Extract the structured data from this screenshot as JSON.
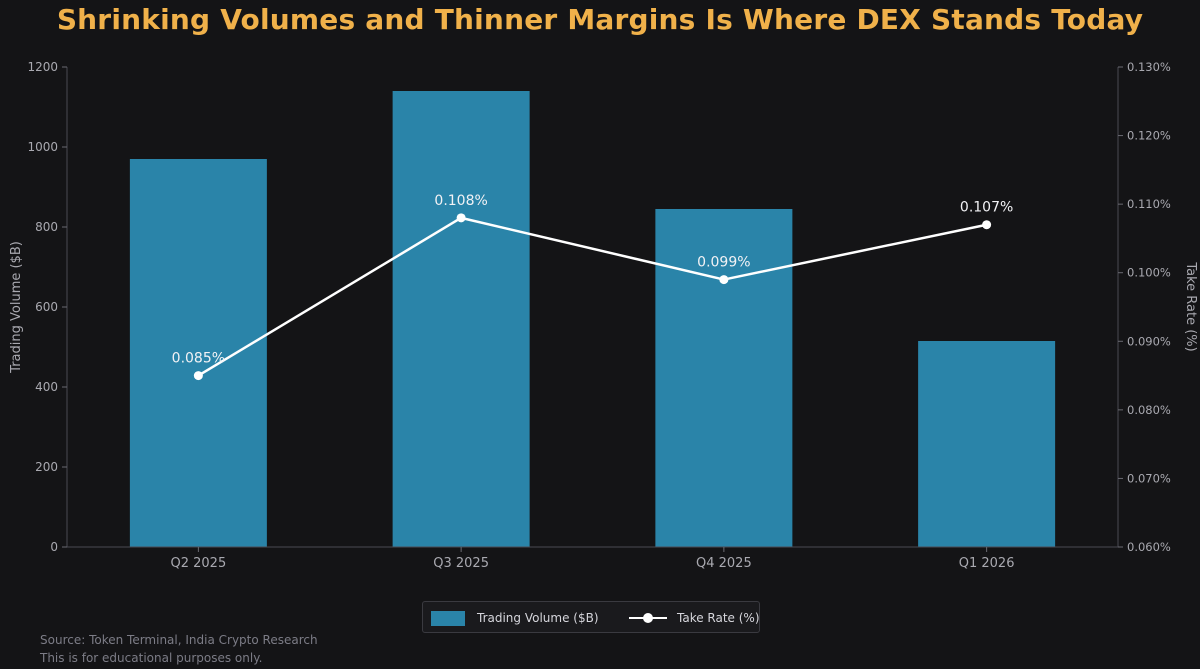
{
  "title": "Shrinking Volumes and Thinner Margins Is Where DEX Stands Today",
  "chart_data": {
    "type": "bar",
    "categories": [
      "Q2 2025",
      "Q3 2025",
      "Q4 2025",
      "Q1 2026"
    ],
    "series": [
      {
        "name": "Trading Volume ($B)",
        "type": "bar",
        "axis": "left",
        "color": "#2a84a9",
        "values": [
          970,
          1140,
          845,
          515
        ]
      },
      {
        "name": "Take Rate (%)",
        "type": "line",
        "axis": "right",
        "color": "#ffffff",
        "values": [
          0.085,
          0.108,
          0.099,
          0.107
        ],
        "data_labels": [
          "0.085%",
          "0.108%",
          "0.099%",
          "0.107%"
        ]
      }
    ],
    "ylabel": "Trading Volume ($B)",
    "ylim": [
      0,
      1200
    ],
    "y_ticks": [
      "0",
      "200",
      "400",
      "600",
      "800",
      "1000",
      "1200"
    ],
    "y2label": "Take Rate (%)",
    "y2lim": [
      0.06,
      0.13
    ],
    "y2_ticks": [
      "0.060%",
      "0.070%",
      "0.080%",
      "0.090%",
      "0.100%",
      "0.110%",
      "0.120%",
      "0.130%"
    ],
    "grid": false,
    "legend": "bottom-center"
  },
  "legend": {
    "volume_label": "Trading Volume ($B)",
    "rate_label": "Take Rate (%)"
  },
  "footnotes": {
    "source": "Source: Token Terminal, India Crypto Research",
    "disclaimer": "This is for educational purposes only."
  }
}
